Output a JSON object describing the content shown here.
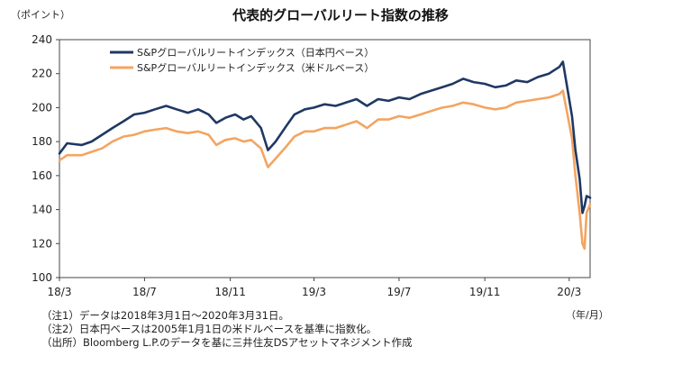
{
  "chart_data": {
    "type": "line",
    "title": "代表的グローバルリート指数の推移",
    "ylabel": "（ポイント）",
    "xlabel": "（年/月）",
    "ylim": [
      100,
      240
    ],
    "yticks": [
      100,
      120,
      140,
      160,
      180,
      200,
      220,
      240
    ],
    "x_range": [
      "2018-03-01",
      "2020-03-31"
    ],
    "x_ticks": [
      {
        "label": "18/3",
        "date": "2018-03-01"
      },
      {
        "label": "18/7",
        "date": "2018-07-01"
      },
      {
        "label": "18/11",
        "date": "2018-11-01"
      },
      {
        "label": "19/3",
        "date": "2019-03-01"
      },
      {
        "label": "19/7",
        "date": "2019-07-01"
      },
      {
        "label": "19/11",
        "date": "2019-11-01"
      },
      {
        "label": "20/3",
        "date": "2020-03-01"
      }
    ],
    "series": [
      {
        "name": "S&Pグローバルリートインデックス（日本円ベース）",
        "color": "#1f3864",
        "points": [
          [
            "2018-03-01",
            173
          ],
          [
            "2018-03-12",
            179
          ],
          [
            "2018-04-02",
            178
          ],
          [
            "2018-04-16",
            180
          ],
          [
            "2018-05-01",
            184
          ],
          [
            "2018-05-16",
            188
          ],
          [
            "2018-06-01",
            192
          ],
          [
            "2018-06-16",
            196
          ],
          [
            "2018-07-01",
            197
          ],
          [
            "2018-07-16",
            199
          ],
          [
            "2018-08-01",
            201
          ],
          [
            "2018-08-16",
            199
          ],
          [
            "2018-09-01",
            197
          ],
          [
            "2018-09-16",
            199
          ],
          [
            "2018-10-01",
            196
          ],
          [
            "2018-10-12",
            191
          ],
          [
            "2018-10-25",
            194
          ],
          [
            "2018-11-08",
            196
          ],
          [
            "2018-11-20",
            193
          ],
          [
            "2018-12-01",
            195
          ],
          [
            "2018-12-15",
            188
          ],
          [
            "2018-12-25",
            175
          ],
          [
            "2019-01-05",
            180
          ],
          [
            "2019-01-20",
            189
          ],
          [
            "2019-02-01",
            196
          ],
          [
            "2019-02-16",
            199
          ],
          [
            "2019-03-01",
            200
          ],
          [
            "2019-03-16",
            202
          ],
          [
            "2019-04-01",
            201
          ],
          [
            "2019-04-16",
            203
          ],
          [
            "2019-05-01",
            205
          ],
          [
            "2019-05-16",
            201
          ],
          [
            "2019-06-01",
            205
          ],
          [
            "2019-06-16",
            204
          ],
          [
            "2019-07-01",
            206
          ],
          [
            "2019-07-16",
            205
          ],
          [
            "2019-08-01",
            208
          ],
          [
            "2019-08-16",
            210
          ],
          [
            "2019-09-01",
            212
          ],
          [
            "2019-09-16",
            214
          ],
          [
            "2019-10-01",
            217
          ],
          [
            "2019-10-16",
            215
          ],
          [
            "2019-11-01",
            214
          ],
          [
            "2019-11-16",
            212
          ],
          [
            "2019-12-01",
            213
          ],
          [
            "2019-12-16",
            216
          ],
          [
            "2020-01-01",
            215
          ],
          [
            "2020-01-16",
            218
          ],
          [
            "2020-02-01",
            220
          ],
          [
            "2020-02-16",
            224
          ],
          [
            "2020-02-21",
            227
          ],
          [
            "2020-02-28",
            210
          ],
          [
            "2020-03-05",
            195
          ],
          [
            "2020-03-10",
            175
          ],
          [
            "2020-03-16",
            158
          ],
          [
            "2020-03-20",
            138
          ],
          [
            "2020-03-23",
            142
          ],
          [
            "2020-03-26",
            148
          ],
          [
            "2020-03-31",
            147
          ]
        ]
      },
      {
        "name": "S&Pグローバルリートインデックス（米ドルベース）",
        "color": "#f4a460",
        "points": [
          [
            "2018-03-01",
            169
          ],
          [
            "2018-03-12",
            172
          ],
          [
            "2018-04-02",
            172
          ],
          [
            "2018-04-16",
            174
          ],
          [
            "2018-05-01",
            176
          ],
          [
            "2018-05-16",
            180
          ],
          [
            "2018-06-01",
            183
          ],
          [
            "2018-06-16",
            184
          ],
          [
            "2018-07-01",
            186
          ],
          [
            "2018-07-16",
            187
          ],
          [
            "2018-08-01",
            188
          ],
          [
            "2018-08-16",
            186
          ],
          [
            "2018-09-01",
            185
          ],
          [
            "2018-09-16",
            186
          ],
          [
            "2018-10-01",
            184
          ],
          [
            "2018-10-12",
            178
          ],
          [
            "2018-10-25",
            181
          ],
          [
            "2018-11-08",
            182
          ],
          [
            "2018-11-20",
            180
          ],
          [
            "2018-12-01",
            181
          ],
          [
            "2018-12-15",
            176
          ],
          [
            "2018-12-25",
            165
          ],
          [
            "2019-01-05",
            170
          ],
          [
            "2019-01-20",
            177
          ],
          [
            "2019-02-01",
            183
          ],
          [
            "2019-02-16",
            186
          ],
          [
            "2019-03-01",
            186
          ],
          [
            "2019-03-16",
            188
          ],
          [
            "2019-04-01",
            188
          ],
          [
            "2019-04-16",
            190
          ],
          [
            "2019-05-01",
            192
          ],
          [
            "2019-05-16",
            188
          ],
          [
            "2019-06-01",
            193
          ],
          [
            "2019-06-16",
            193
          ],
          [
            "2019-07-01",
            195
          ],
          [
            "2019-07-16",
            194
          ],
          [
            "2019-08-01",
            196
          ],
          [
            "2019-08-16",
            198
          ],
          [
            "2019-09-01",
            200
          ],
          [
            "2019-09-16",
            201
          ],
          [
            "2019-10-01",
            203
          ],
          [
            "2019-10-16",
            202
          ],
          [
            "2019-11-01",
            200
          ],
          [
            "2019-11-16",
            199
          ],
          [
            "2019-12-01",
            200
          ],
          [
            "2019-12-16",
            203
          ],
          [
            "2020-01-01",
            204
          ],
          [
            "2020-01-16",
            205
          ],
          [
            "2020-02-01",
            206
          ],
          [
            "2020-02-16",
            208
          ],
          [
            "2020-02-21",
            210
          ],
          [
            "2020-02-28",
            195
          ],
          [
            "2020-03-05",
            182
          ],
          [
            "2020-03-10",
            160
          ],
          [
            "2020-03-16",
            138
          ],
          [
            "2020-03-20",
            120
          ],
          [
            "2020-03-23",
            117
          ],
          [
            "2020-03-26",
            138
          ],
          [
            "2020-03-31",
            143
          ]
        ]
      }
    ]
  },
  "notes": [
    "（注1）データは2018年3月1日～2020年3月31日。",
    "（注2）日本円ベースは2005年1月1日の米ドルベースを基準に指数化。",
    "（出所）Bloomberg L.P.のデータを基に三井住友DSアセットマネジメント作成"
  ]
}
